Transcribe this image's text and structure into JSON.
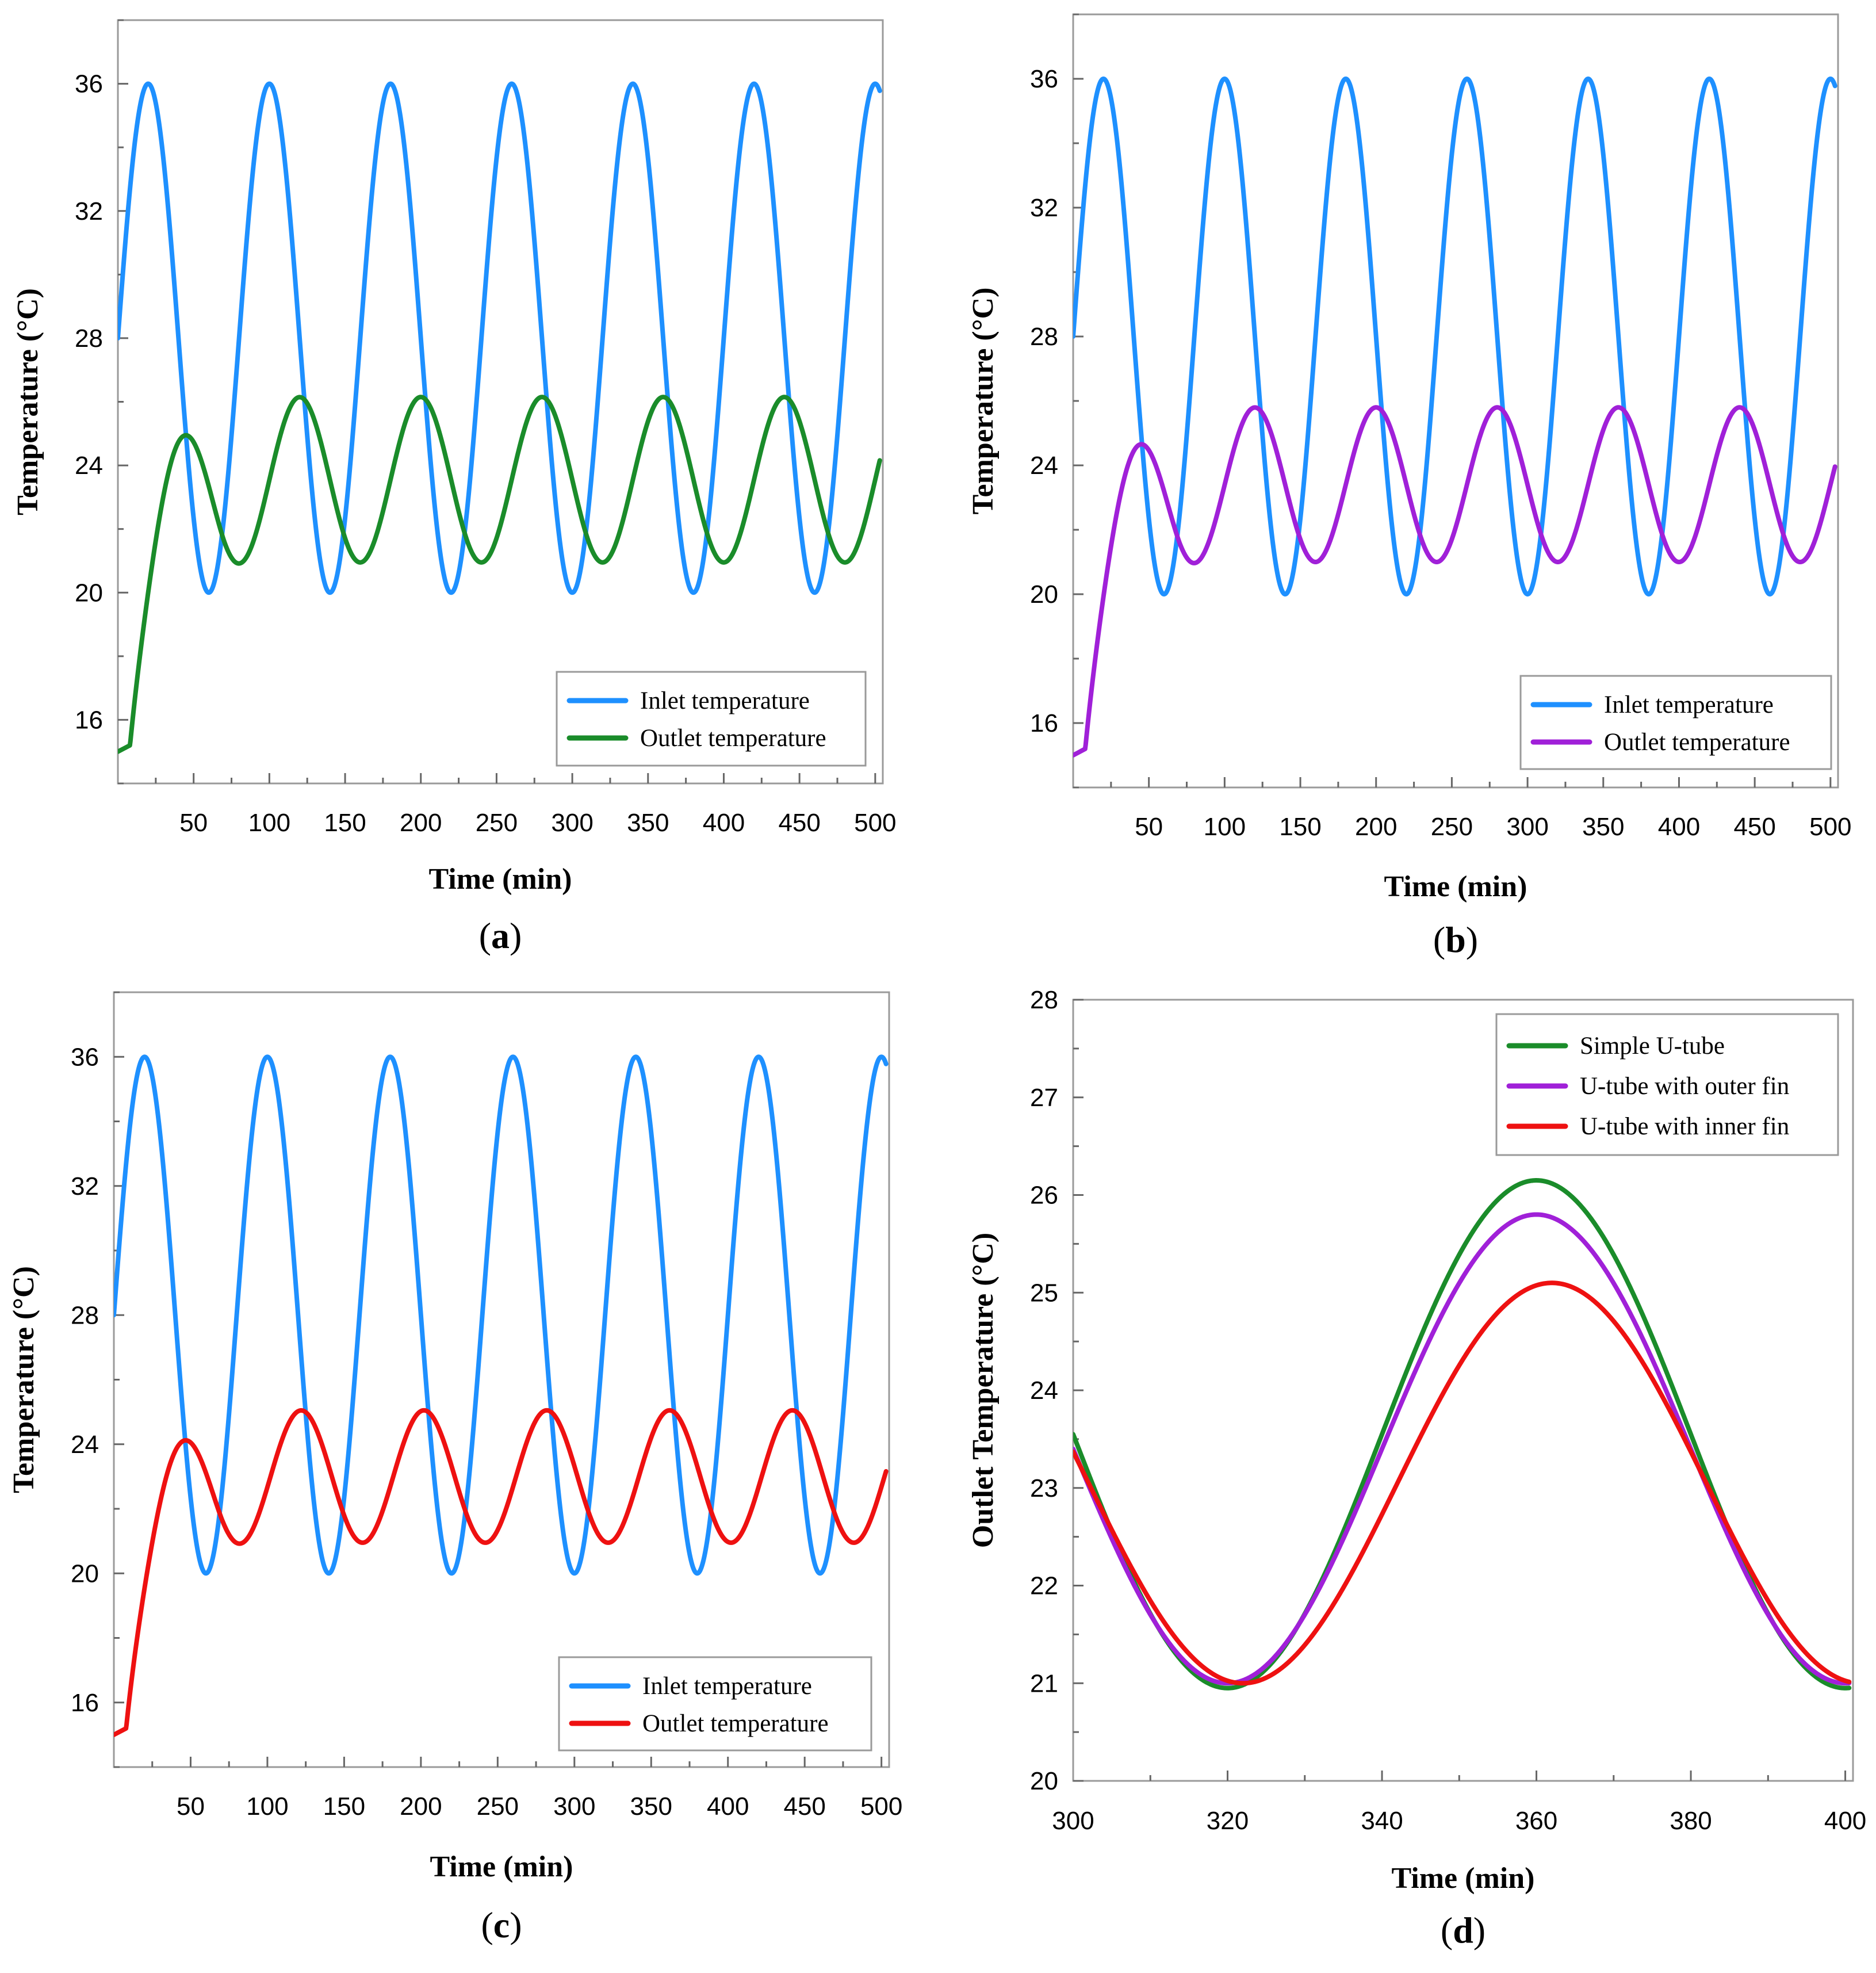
{
  "colors": {
    "inlet": "#1E90FF",
    "simple": "#1A8C2A",
    "outer": "#A020D8",
    "inner": "#EE1111",
    "frame": "#9a9a9a"
  },
  "chart_data": [
    {
      "id": "a",
      "type": "line",
      "panel_label": "a",
      "xlabel": "Time (min)",
      "ylabel": "Temperature (°C)",
      "xlim": [
        0,
        505
      ],
      "ylim": [
        14,
        38
      ],
      "xticks": [
        50,
        100,
        150,
        200,
        250,
        300,
        350,
        400,
        450,
        500
      ],
      "yticks": [
        16,
        20,
        24,
        28,
        32,
        36
      ],
      "legend_position": "bottom-right",
      "series": [
        {
          "name": "Inlet temperature",
          "color_key": "inlet",
          "model": "inlet",
          "params": {
            "mean": 28,
            "amp": 8,
            "period": 80,
            "peak": 20
          }
        },
        {
          "name": "Outlet temperature",
          "color_key": "simple",
          "model": "outlet",
          "params": {
            "base": 15,
            "mean": 23.55,
            "amp": 2.6,
            "peak": 40,
            "rise_start": 8,
            "tau": 14,
            "first_peak_ratio": 0.7
          }
        }
      ]
    },
    {
      "id": "b",
      "type": "line",
      "panel_label": "b",
      "xlabel": "Time (min)",
      "ylabel": "Temperature (°C)",
      "xlim": [
        0,
        505
      ],
      "ylim": [
        14,
        38
      ],
      "xticks": [
        50,
        100,
        150,
        200,
        250,
        300,
        350,
        400,
        450,
        500
      ],
      "yticks": [
        16,
        20,
        24,
        28,
        32,
        36
      ],
      "legend_position": "bottom-right",
      "series": [
        {
          "name": "Inlet temperature",
          "color_key": "inlet",
          "model": "inlet",
          "params": {
            "mean": 28,
            "amp": 8,
            "period": 80,
            "peak": 20
          }
        },
        {
          "name": "Outlet temperature",
          "color_key": "outer",
          "model": "outlet",
          "params": {
            "base": 15,
            "mean": 23.4,
            "amp": 2.4,
            "peak": 40,
            "rise_start": 8,
            "tau": 14,
            "first_peak_ratio": 0.7
          }
        }
      ]
    },
    {
      "id": "c",
      "type": "line",
      "panel_label": "c",
      "xlabel": "Time (min)",
      "ylabel": "Temperature (°C)",
      "xlim": [
        0,
        505
      ],
      "ylim": [
        14,
        38
      ],
      "xticks": [
        50,
        100,
        150,
        200,
        250,
        300,
        350,
        400,
        450,
        500
      ],
      "yticks": [
        16,
        20,
        24,
        28,
        32,
        36
      ],
      "legend_position": "bottom-right",
      "series": [
        {
          "name": "Inlet temperature",
          "color_key": "inlet",
          "model": "inlet",
          "params": {
            "mean": 28,
            "amp": 8,
            "period": 80,
            "peak": 20
          }
        },
        {
          "name": "Outlet temperature",
          "color_key": "inner",
          "model": "outlet",
          "params": {
            "base": 15,
            "mean": 23.0,
            "amp": 2.05,
            "peak": 42,
            "rise_start": 8,
            "tau": 14,
            "first_peak_ratio": 0.7
          }
        }
      ]
    },
    {
      "id": "d",
      "type": "line",
      "panel_label": "d",
      "xlabel": "Time (min)",
      "ylabel": "Outlet Temperature (°C)",
      "xlim": [
        300,
        401
      ],
      "ylim": [
        20,
        28
      ],
      "xticks": [
        300,
        320,
        340,
        360,
        380,
        400
      ],
      "yticks": [
        20,
        21,
        22,
        23,
        24,
        25,
        26,
        27,
        28
      ],
      "legend_position": "top-right",
      "series": [
        {
          "name": "Simple U-tube",
          "color_key": "simple",
          "model": "cos",
          "params": {
            "mean": 23.55,
            "amp": 2.6,
            "period": 80,
            "peak": 360
          }
        },
        {
          "name": "U-tube with outer fin",
          "color_key": "outer",
          "model": "cos",
          "params": {
            "mean": 23.4,
            "amp": 2.4,
            "period": 80,
            "peak": 360
          }
        },
        {
          "name": "U-tube with inner fin",
          "color_key": "inner",
          "model": "cos",
          "params": {
            "mean": 23.05,
            "amp": 2.05,
            "period": 80,
            "peak": 362
          }
        }
      ]
    }
  ]
}
